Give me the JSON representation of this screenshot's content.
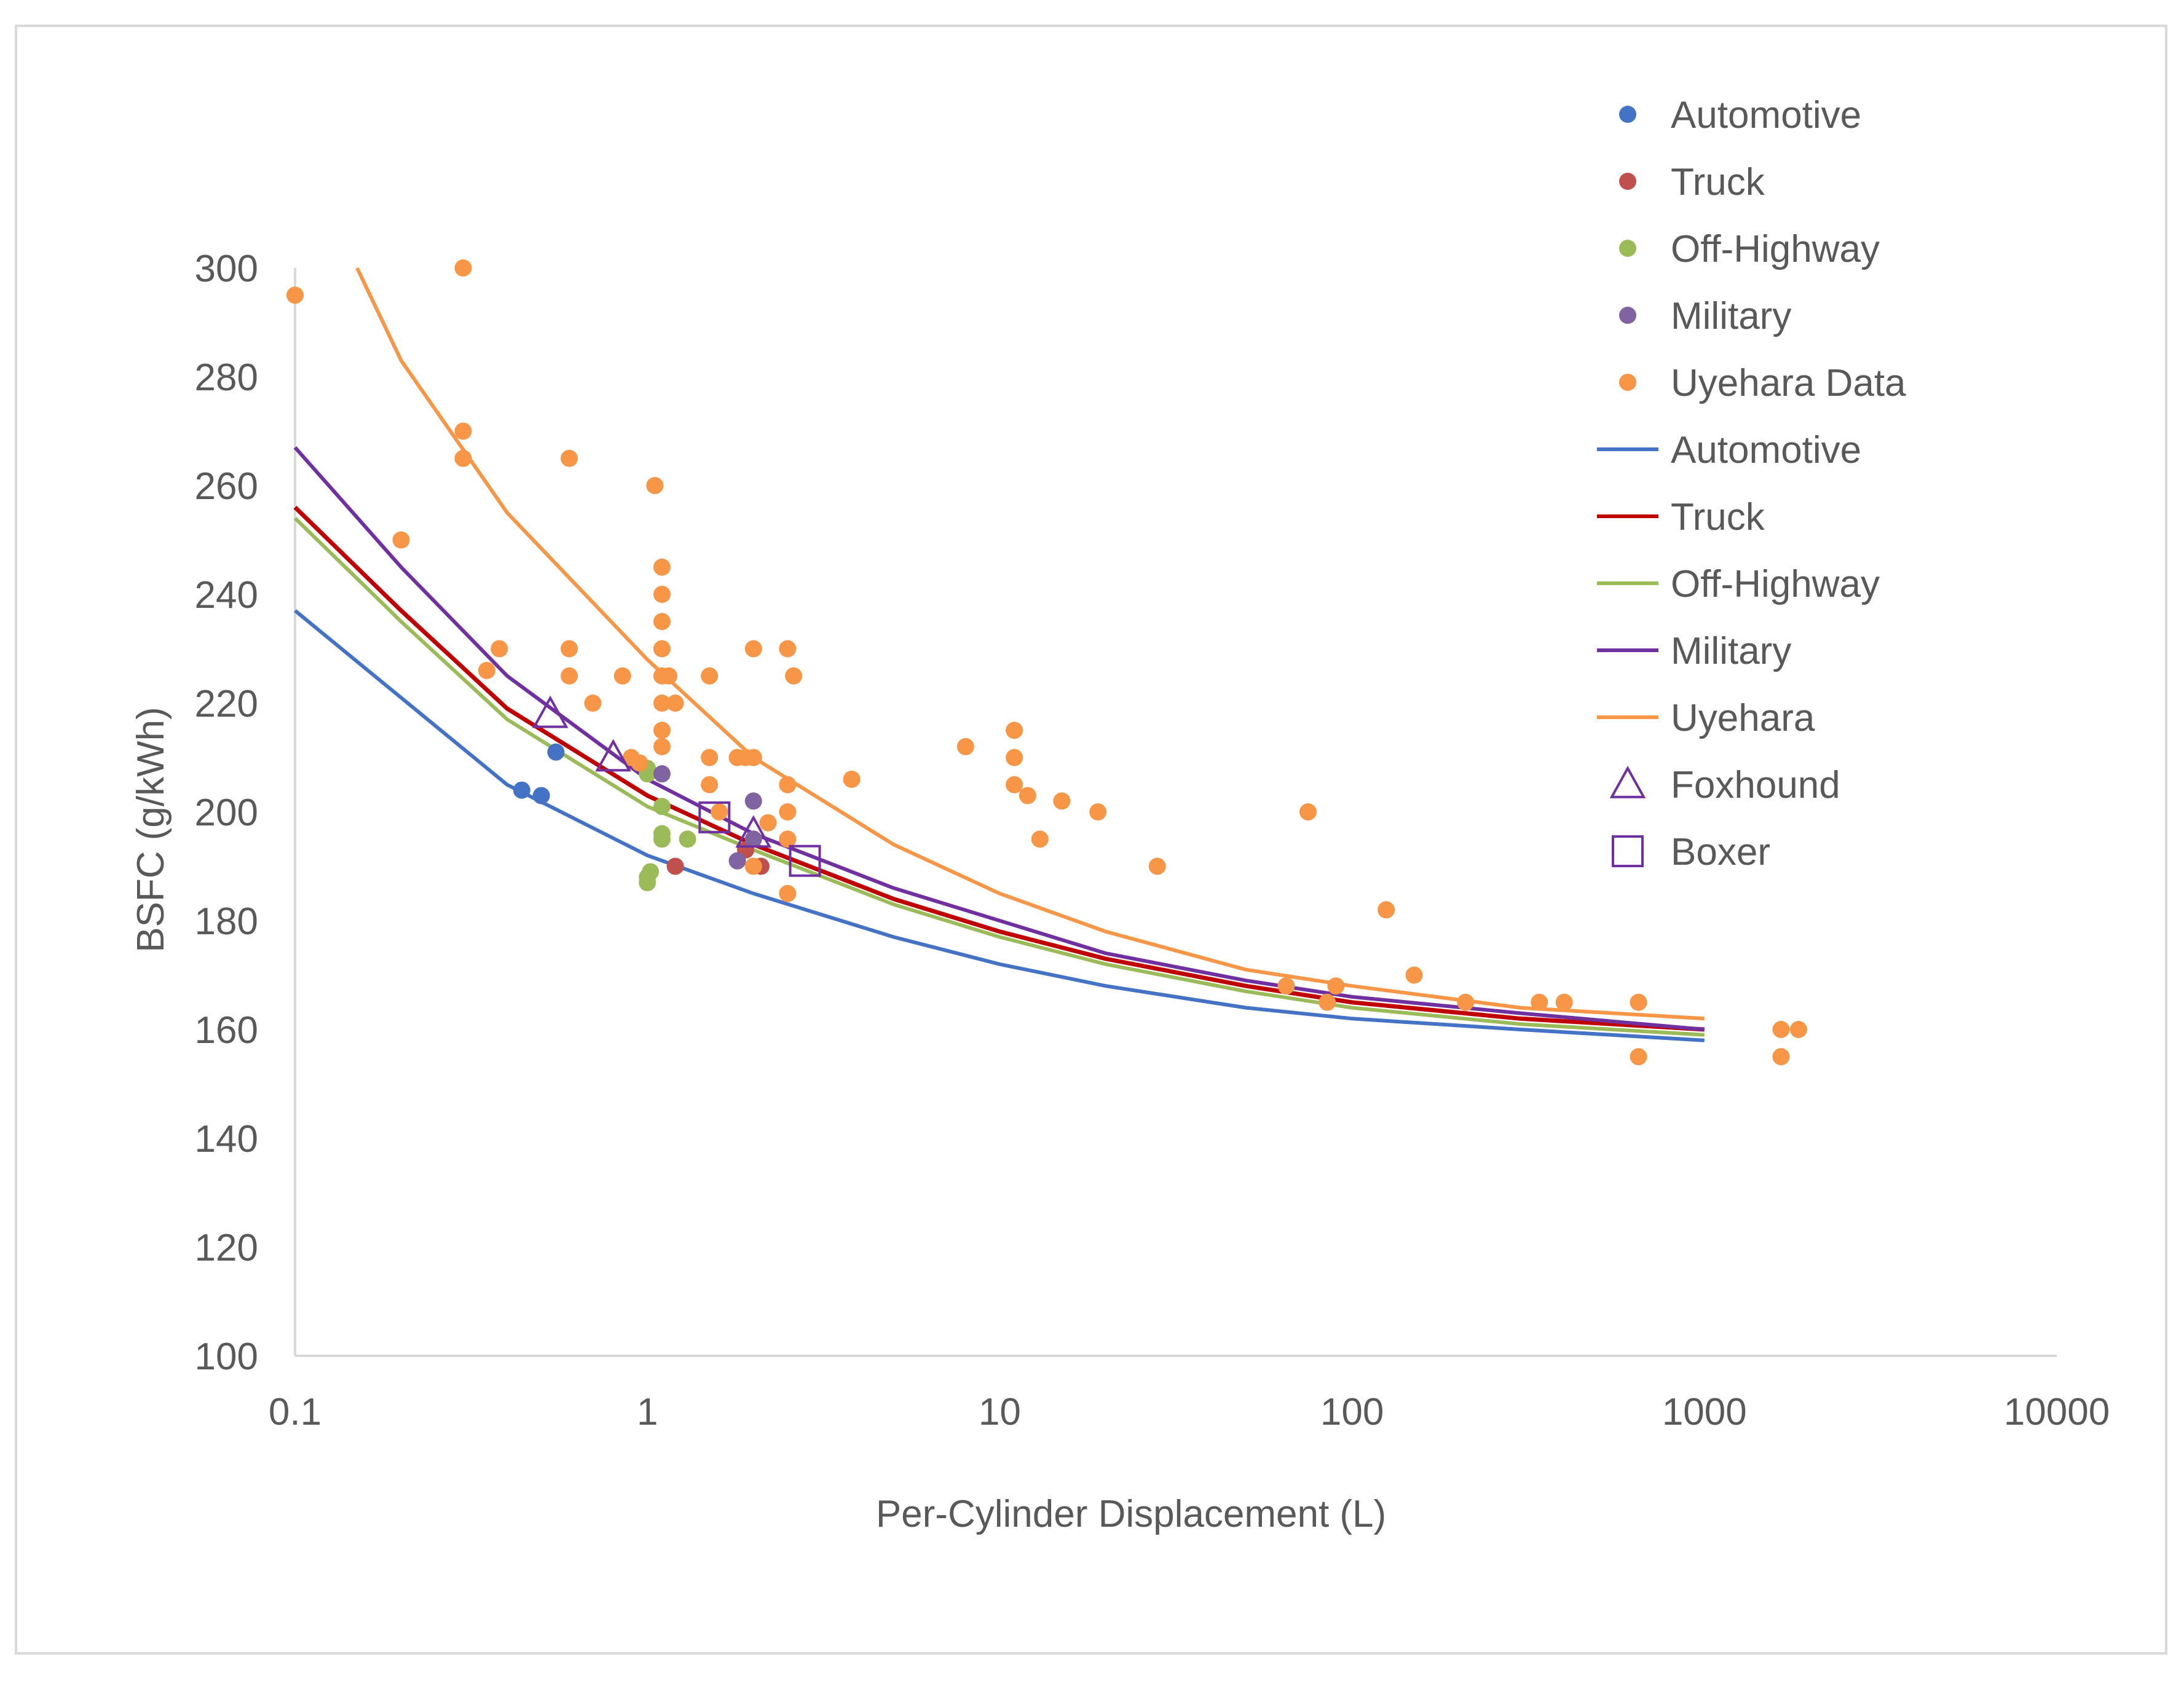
{
  "chart_data": {
    "type": "scatter",
    "title": "",
    "xlabel": "Per-Cylinder Displacement (L)",
    "ylabel": "BSFC (g/kWh)",
    "xscale": "log",
    "xlim": [
      0.1,
      10000
    ],
    "ylim": [
      100,
      300
    ],
    "xticks": [
      0.1,
      1,
      10,
      100,
      1000,
      10000
    ],
    "xtick_labels": [
      "0.1",
      "1",
      "10",
      "100",
      "1000",
      "10000"
    ],
    "yticks": [
      100,
      120,
      140,
      160,
      180,
      200,
      220,
      240,
      260,
      280,
      300
    ],
    "ytick_labels": [
      "100",
      "120",
      "140",
      "160",
      "180",
      "200",
      "220",
      "240",
      "260",
      "280",
      "300"
    ],
    "grid": false,
    "legend_position": "right",
    "series": [
      {
        "name": "Automotive",
        "kind": "points",
        "marker": "circle",
        "color": "#4472c4",
        "points": [
          [
            0.44,
            204
          ],
          [
            0.5,
            203
          ],
          [
            0.55,
            211
          ]
        ]
      },
      {
        "name": "Truck",
        "kind": "points",
        "marker": "circle",
        "color": "#c0504d",
        "points": [
          [
            1.2,
            190
          ],
          [
            2.1,
            190
          ],
          [
            1.9,
            193
          ]
        ]
      },
      {
        "name": "Off-Highway",
        "kind": "points",
        "marker": "circle",
        "color": "#9bbb59",
        "points": [
          [
            1.0,
            188
          ],
          [
            1.0,
            187
          ],
          [
            1.02,
            189
          ],
          [
            1.1,
            195
          ],
          [
            1.1,
            201
          ],
          [
            1.3,
            195
          ],
          [
            1.0,
            208
          ],
          [
            1.0,
            207
          ],
          [
            1.1,
            196
          ]
        ]
      },
      {
        "name": "Military",
        "kind": "points",
        "marker": "circle",
        "color": "#8064a2",
        "points": [
          [
            1.1,
            207
          ],
          [
            2.0,
            202
          ],
          [
            1.8,
            191
          ],
          [
            2.0,
            195
          ]
        ]
      },
      {
        "name": "Uyehara Data",
        "kind": "points",
        "marker": "circle",
        "color": "#f79646",
        "points": [
          [
            0.1,
            295
          ],
          [
            0.2,
            250
          ],
          [
            0.3,
            300
          ],
          [
            0.3,
            270
          ],
          [
            0.3,
            265
          ],
          [
            0.35,
            226
          ],
          [
            0.38,
            230
          ],
          [
            0.6,
            265
          ],
          [
            0.6,
            230
          ],
          [
            0.6,
            225
          ],
          [
            0.7,
            220
          ],
          [
            0.85,
            225
          ],
          [
            0.9,
            210
          ],
          [
            0.95,
            209
          ],
          [
            1.05,
            260
          ],
          [
            1.1,
            245
          ],
          [
            1.1,
            240
          ],
          [
            1.1,
            235
          ],
          [
            1.1,
            230
          ],
          [
            1.1,
            225
          ],
          [
            1.1,
            220
          ],
          [
            1.1,
            215
          ],
          [
            1.1,
            212
          ],
          [
            1.15,
            225
          ],
          [
            1.2,
            220
          ],
          [
            1.5,
            225
          ],
          [
            1.5,
            210
          ],
          [
            1.5,
            205
          ],
          [
            1.6,
            200
          ],
          [
            1.8,
            210
          ],
          [
            1.9,
            210
          ],
          [
            2.0,
            230
          ],
          [
            2.0,
            210
          ],
          [
            2.0,
            190
          ],
          [
            2.2,
            198
          ],
          [
            2.5,
            230
          ],
          [
            2.5,
            205
          ],
          [
            2.5,
            200
          ],
          [
            2.5,
            195
          ],
          [
            2.6,
            225
          ],
          [
            2.5,
            185
          ],
          [
            3.8,
            206
          ],
          [
            8,
            212
          ],
          [
            11,
            215
          ],
          [
            11,
            210
          ],
          [
            11,
            205
          ],
          [
            12,
            203
          ],
          [
            13,
            195
          ],
          [
            15,
            202
          ],
          [
            19,
            200
          ],
          [
            28,
            190
          ],
          [
            65,
            168
          ],
          [
            75,
            200
          ],
          [
            85,
            165
          ],
          [
            90,
            168
          ],
          [
            125,
            182
          ],
          [
            150,
            170
          ],
          [
            210,
            165
          ],
          [
            340,
            165
          ],
          [
            400,
            165
          ],
          [
            650,
            165
          ],
          [
            650,
            155
          ],
          [
            1650,
            160
          ],
          [
            1650,
            155
          ],
          [
            1850,
            160
          ]
        ]
      },
      {
        "name": "Automotive",
        "kind": "line",
        "color": "#4472c4",
        "points": [
          [
            0.1,
            237
          ],
          [
            0.2,
            221
          ],
          [
            0.4,
            205
          ],
          [
            1,
            192
          ],
          [
            2,
            185
          ],
          [
            5,
            177
          ],
          [
            10,
            172
          ],
          [
            20,
            168
          ],
          [
            50,
            164
          ],
          [
            100,
            162
          ],
          [
            300,
            160
          ],
          [
            1000,
            158
          ]
        ]
      },
      {
        "name": "Truck",
        "kind": "line",
        "color": "#c00000",
        "points": [
          [
            0.1,
            256
          ],
          [
            0.2,
            237
          ],
          [
            0.4,
            219
          ],
          [
            1,
            203
          ],
          [
            2,
            194
          ],
          [
            5,
            184
          ],
          [
            10,
            178
          ],
          [
            20,
            173
          ],
          [
            50,
            168
          ],
          [
            100,
            165
          ],
          [
            300,
            162
          ],
          [
            1000,
            160
          ]
        ]
      },
      {
        "name": "Off-Highway",
        "kind": "line",
        "color": "#9bbb59",
        "points": [
          [
            0.1,
            254
          ],
          [
            0.2,
            235
          ],
          [
            0.4,
            217
          ],
          [
            1,
            201
          ],
          [
            2,
            193
          ],
          [
            5,
            183
          ],
          [
            10,
            177
          ],
          [
            20,
            172
          ],
          [
            50,
            167
          ],
          [
            100,
            164
          ],
          [
            300,
            161
          ],
          [
            1000,
            159
          ]
        ]
      },
      {
        "name": "Military",
        "kind": "line",
        "color": "#7030a0",
        "points": [
          [
            0.1,
            267
          ],
          [
            0.2,
            245
          ],
          [
            0.4,
            225
          ],
          [
            1,
            206
          ],
          [
            2,
            196
          ],
          [
            5,
            186
          ],
          [
            10,
            180
          ],
          [
            20,
            174
          ],
          [
            50,
            169
          ],
          [
            100,
            166
          ],
          [
            300,
            163
          ],
          [
            1000,
            160
          ]
        ]
      },
      {
        "name": "Uyehara",
        "kind": "line",
        "color": "#f79646",
        "points": [
          [
            0.15,
            300
          ],
          [
            0.2,
            283
          ],
          [
            0.4,
            255
          ],
          [
            1,
            228
          ],
          [
            2,
            210
          ],
          [
            5,
            194
          ],
          [
            10,
            185
          ],
          [
            20,
            178
          ],
          [
            50,
            171
          ],
          [
            100,
            168
          ],
          [
            300,
            164
          ],
          [
            1000,
            162
          ]
        ]
      },
      {
        "name": "Foxhound",
        "kind": "points",
        "marker": "triangle-open",
        "color": "#7030a0",
        "points": [
          [
            0.53,
            218
          ],
          [
            0.8,
            210
          ],
          [
            2.0,
            196
          ]
        ]
      },
      {
        "name": "Boxer",
        "kind": "points",
        "marker": "square-open",
        "color": "#7030a0",
        "points": [
          [
            1.55,
            199
          ],
          [
            2.8,
            191
          ]
        ]
      }
    ],
    "legend": [
      {
        "label": "Automotive",
        "symbol": "circle",
        "color": "#4472c4"
      },
      {
        "label": "Truck",
        "symbol": "circle",
        "color": "#c0504d"
      },
      {
        "label": "Off-Highway",
        "symbol": "circle",
        "color": "#9bbb59"
      },
      {
        "label": "Military",
        "symbol": "circle",
        "color": "#8064a2"
      },
      {
        "label": "Uyehara Data",
        "symbol": "circle",
        "color": "#f79646"
      },
      {
        "label": "Automotive",
        "symbol": "line",
        "color": "#4472c4"
      },
      {
        "label": "Truck",
        "symbol": "line",
        "color": "#c00000"
      },
      {
        "label": "Off-Highway",
        "symbol": "line",
        "color": "#9bbb59"
      },
      {
        "label": "Military",
        "symbol": "line",
        "color": "#7030a0"
      },
      {
        "label": "Uyehara",
        "symbol": "line",
        "color": "#f79646"
      },
      {
        "label": "Foxhound",
        "symbol": "triangle-open",
        "color": "#7030a0"
      },
      {
        "label": "Boxer",
        "symbol": "square-open",
        "color": "#7030a0"
      }
    ]
  }
}
